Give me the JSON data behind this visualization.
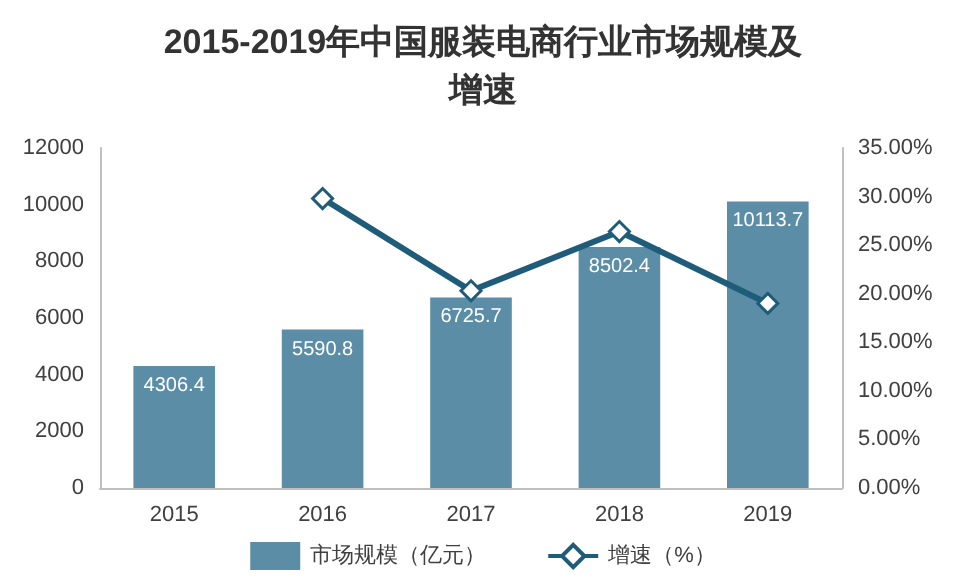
{
  "chart_data": {
    "type": "bar",
    "title": "2015-2019年中国服装电商行业市场规模及增速",
    "categories": [
      "2015",
      "2016",
      "2017",
      "2018",
      "2019"
    ],
    "series": [
      {
        "name": "市场规模（亿元）",
        "color": "#5b8ea6",
        "values": [
          4306.4,
          5590.8,
          6725.7,
          8502.4,
          10113.7
        ],
        "value_labels": [
          "4306.4",
          "5590.8",
          "6725.7",
          "8502.4",
          "10113.7"
        ]
      },
      {
        "name": "增速（%）",
        "type": "line",
        "axis": "y2",
        "color": "#1f5c7a",
        "marker": "diamond",
        "values": [
          null,
          29.8,
          20.3,
          26.4,
          19.0
        ]
      }
    ],
    "ylim": [
      0,
      12000
    ],
    "yticks": [
      0,
      2000,
      4000,
      6000,
      8000,
      10000,
      12000
    ],
    "y2lim": [
      0,
      35
    ],
    "y2ticks": [
      {
        "value": 0,
        "label": "0.00%"
      },
      {
        "value": 5,
        "label": "5.00%"
      },
      {
        "value": 10,
        "label": "10.00%"
      },
      {
        "value": 15,
        "label": "15.00%"
      },
      {
        "value": 20,
        "label": "20.00%"
      },
      {
        "value": 25,
        "label": "25.00%"
      },
      {
        "value": 30,
        "label": "30.00%"
      },
      {
        "value": 35,
        "label": "35.00%"
      }
    ],
    "grid": false,
    "legend": "bottom"
  }
}
